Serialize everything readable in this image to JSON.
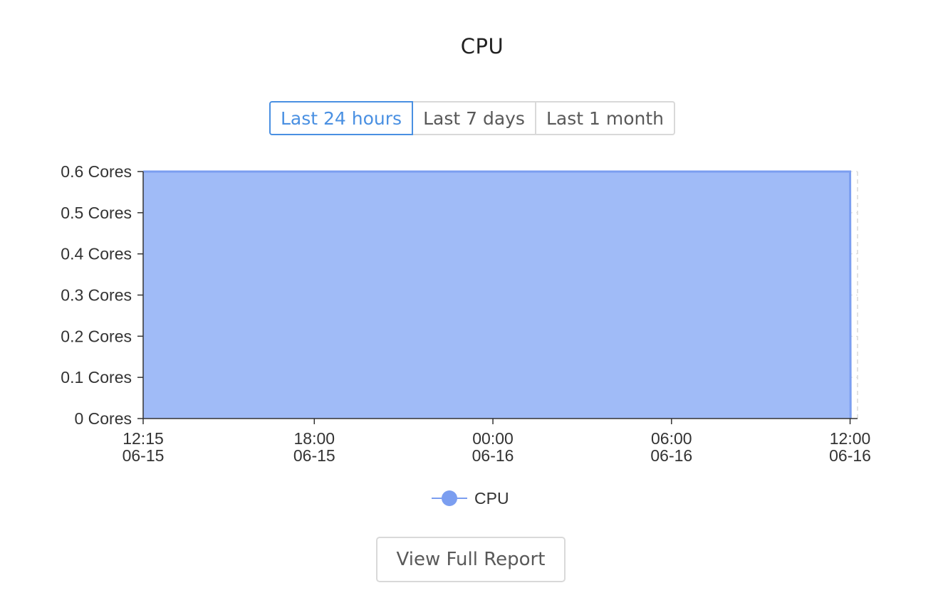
{
  "header": {
    "title": "CPU"
  },
  "time_range": {
    "options": [
      "Last 24 hours",
      "Last 7 days",
      "Last 1 month"
    ],
    "selected": "Last 24 hours"
  },
  "footer": {
    "report_label": "View Full Report"
  },
  "colors": {
    "series_fill": "#a0bbf7",
    "series_line": "#7b9ef0",
    "active": "#4a90e2"
  },
  "chart_data": {
    "type": "area",
    "title": "CPU",
    "xlabel": "",
    "ylabel": "",
    "x_ticks": [
      {
        "time": "12:15",
        "date": "06-15"
      },
      {
        "time": "18:00",
        "date": "06-15"
      },
      {
        "time": "00:00",
        "date": "06-16"
      },
      {
        "time": "06:00",
        "date": "06-16"
      },
      {
        "time": "12:00",
        "date": "06-16"
      }
    ],
    "x_range": [
      "06-15 12:15",
      "06-16 12:15"
    ],
    "y_ticks": [
      "0 Cores",
      "0.1 Cores",
      "0.2 Cores",
      "0.3 Cores",
      "0.4 Cores",
      "0.5 Cores",
      "0.6 Cores"
    ],
    "ylim": [
      0,
      0.6
    ],
    "grid": true,
    "legend_position": "bottom-center",
    "series": [
      {
        "name": "CPU",
        "points": [
          {
            "x": "06-15 12:15",
            "y": 0.6
          },
          {
            "x": "06-16 12:00",
            "y": 0.6
          },
          {
            "x": "06-16 12:01",
            "y": 0
          }
        ]
      }
    ]
  }
}
